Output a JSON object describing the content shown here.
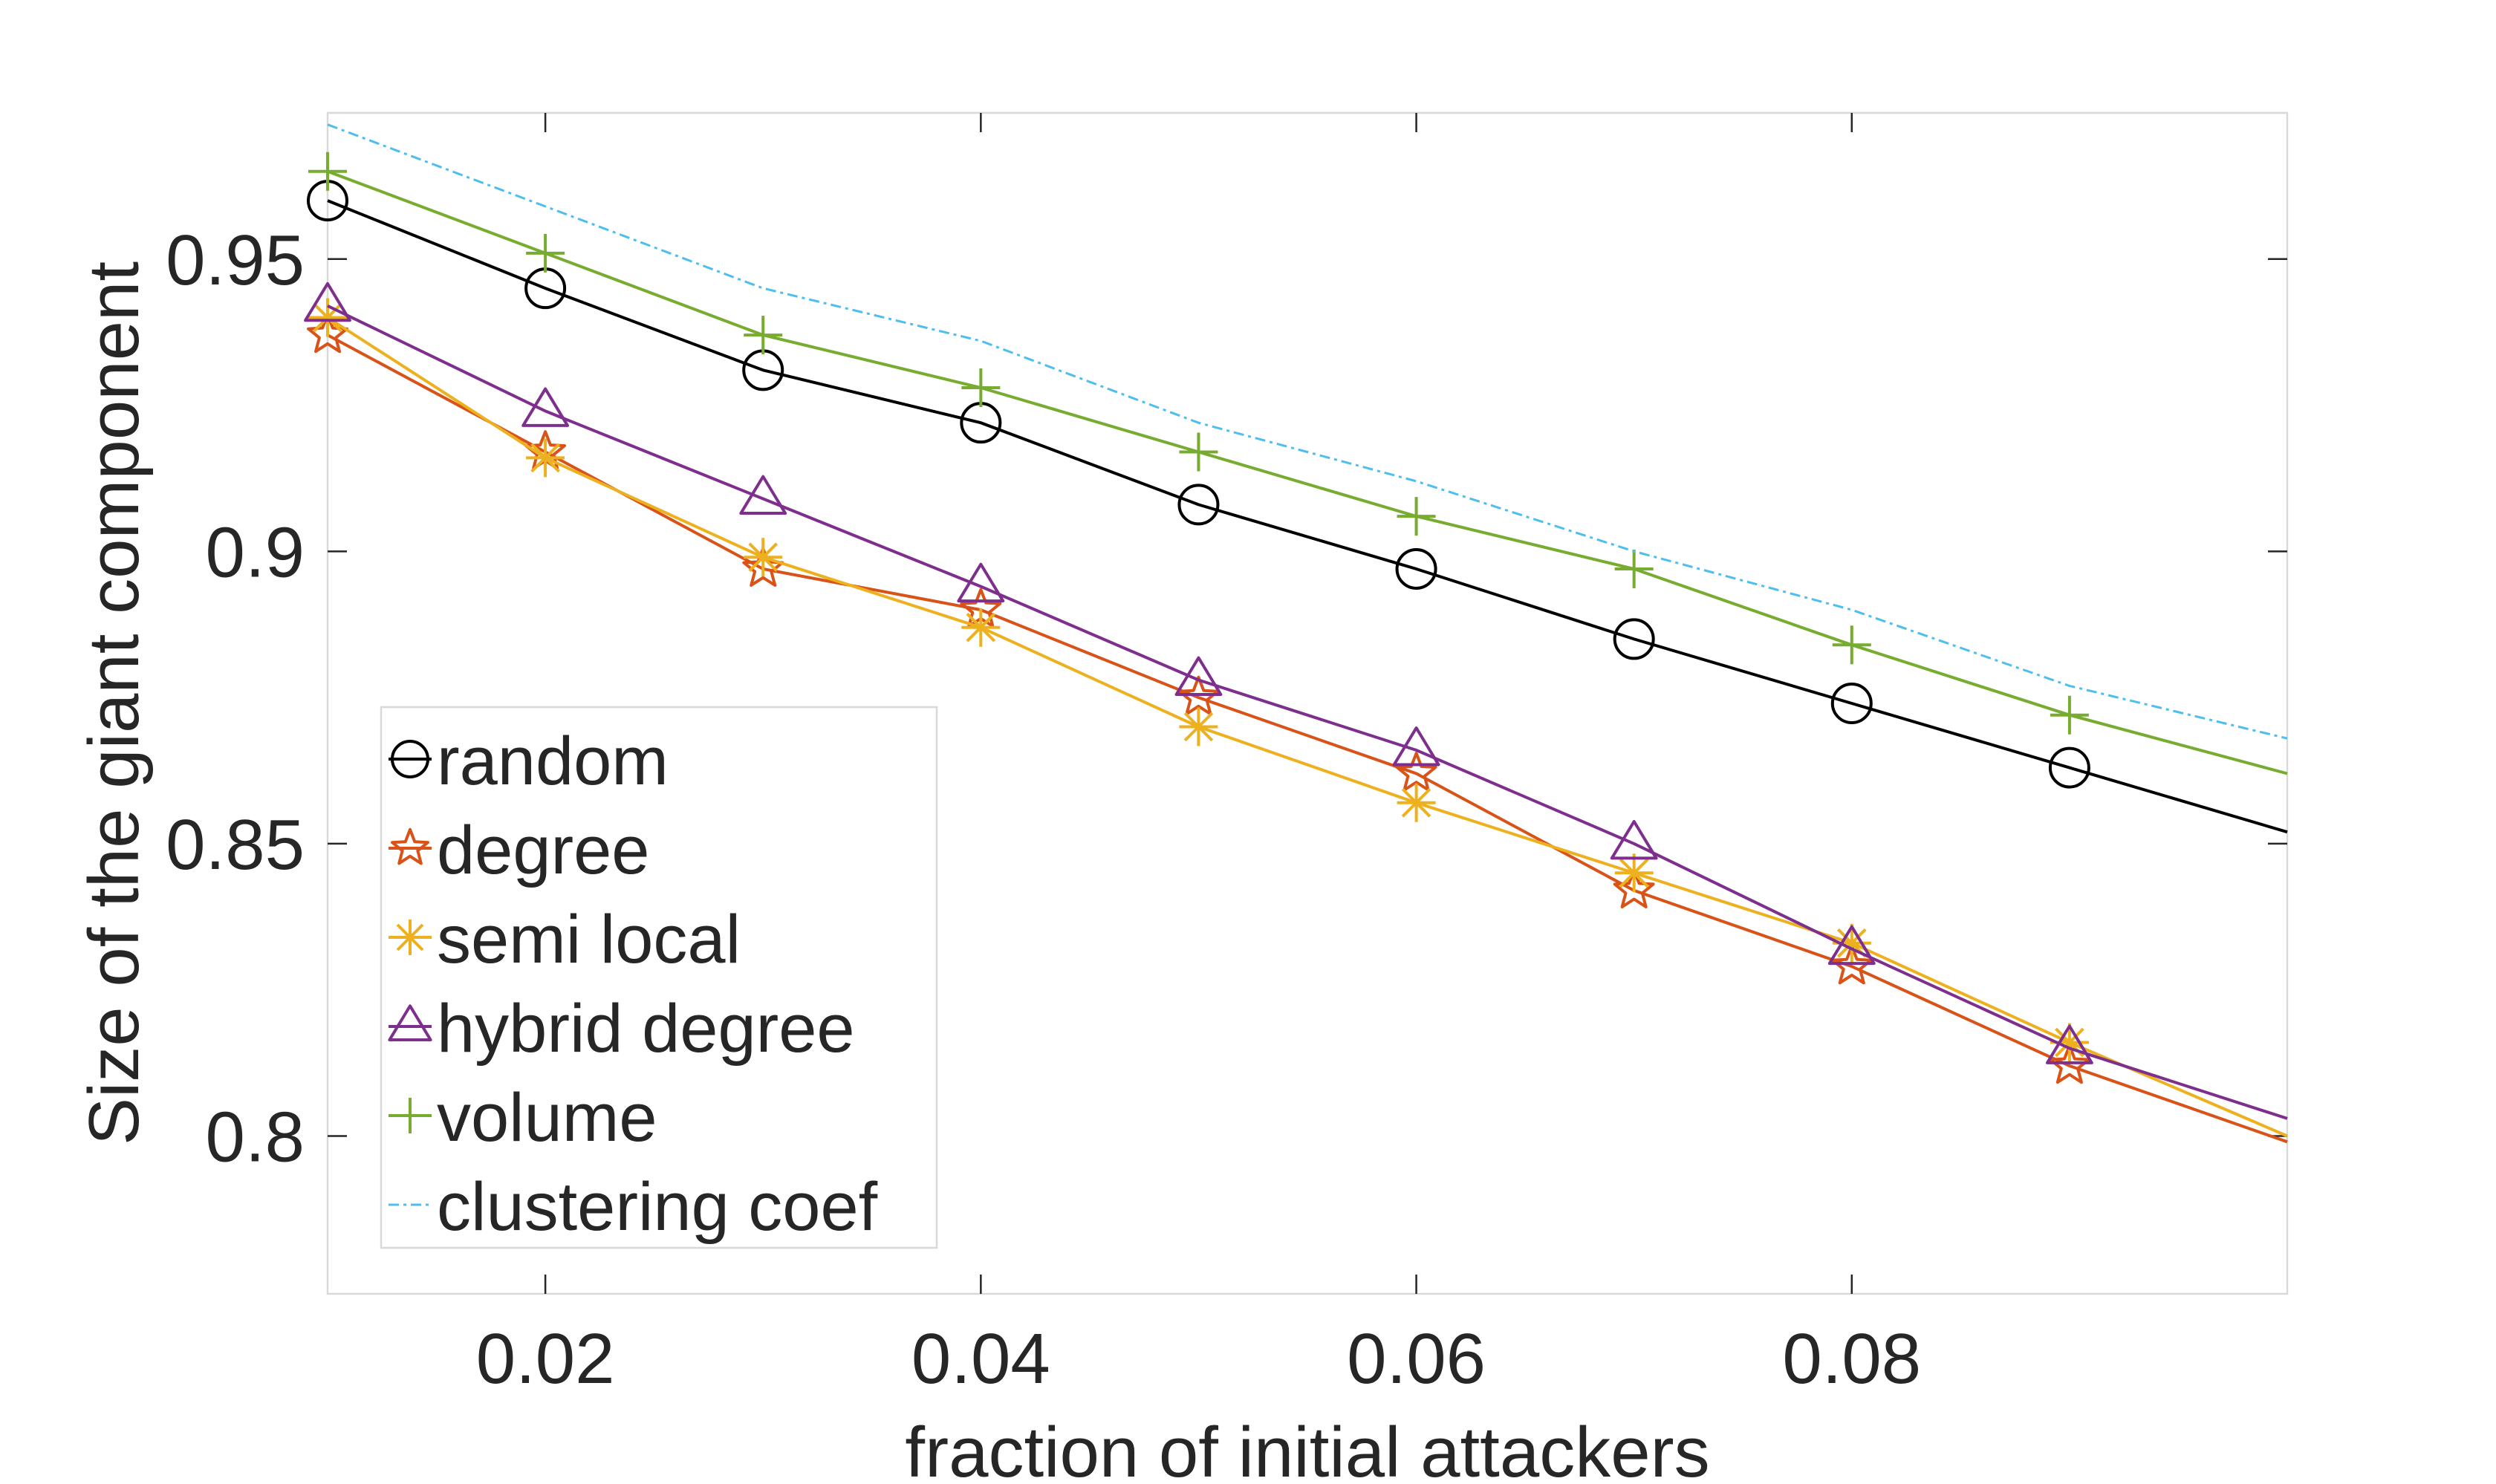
{
  "chart_data": {
    "type": "line",
    "title": "",
    "xlabel": "fraction of initial attackers",
    "ylabel": "Size of the giant component",
    "xlim": [
      0.01,
      0.1
    ],
    "ylim": [
      0.773,
      0.975
    ],
    "xticks": [
      0.02,
      0.04,
      0.06,
      0.08
    ],
    "xtick_labels": [
      "0.02",
      "0.04",
      "0.06",
      "0.08"
    ],
    "yticks": [
      0.8,
      0.85,
      0.9,
      0.95
    ],
    "ytick_labels": [
      "0.8",
      "0.85",
      "0.9",
      "0.95"
    ],
    "grid": false,
    "legend_position": "bottom-left",
    "x": [
      0.01,
      0.02,
      0.03,
      0.04,
      0.05,
      0.06,
      0.07,
      0.08,
      0.09,
      0.1
    ],
    "series": [
      {
        "name": "random",
        "color": "#000000",
        "marker": "circle",
        "dashed": false,
        "values": [
          0.96,
          0.945,
          0.931,
          0.922,
          0.908,
          0.897,
          0.885,
          0.874,
          0.863,
          0.852
        ]
      },
      {
        "name": "degree",
        "color": "#D95319",
        "marker": "star5",
        "dashed": false,
        "values": [
          0.937,
          0.917,
          0.897,
          0.89,
          0.875,
          0.862,
          0.842,
          0.829,
          0.812,
          0.799
        ]
      },
      {
        "name": "semi local",
        "color": "#EDB120",
        "marker": "asterisk",
        "dashed": false,
        "values": [
          0.94,
          0.916,
          0.899,
          0.887,
          0.87,
          0.857,
          0.845,
          0.833,
          0.816,
          0.8
        ]
      },
      {
        "name": "hybrid degree",
        "color": "#7E2F8E",
        "marker": "triangle",
        "dashed": false,
        "values": [
          0.942,
          0.924,
          0.909,
          0.894,
          0.878,
          0.866,
          0.85,
          0.832,
          0.815,
          0.803
        ]
      },
      {
        "name": "volume",
        "color": "#77AC30",
        "marker": "plus",
        "dashed": false,
        "values": [
          0.965,
          0.951,
          0.937,
          0.928,
          0.917,
          0.906,
          0.897,
          0.884,
          0.872,
          0.862
        ]
      },
      {
        "name": "clustering coef",
        "color": "#4DBEEE",
        "marker": "none",
        "dashed": true,
        "values": [
          0.973,
          0.959,
          0.945,
          0.936,
          0.922,
          0.912,
          0.9,
          0.89,
          0.877,
          0.868
        ]
      }
    ]
  }
}
